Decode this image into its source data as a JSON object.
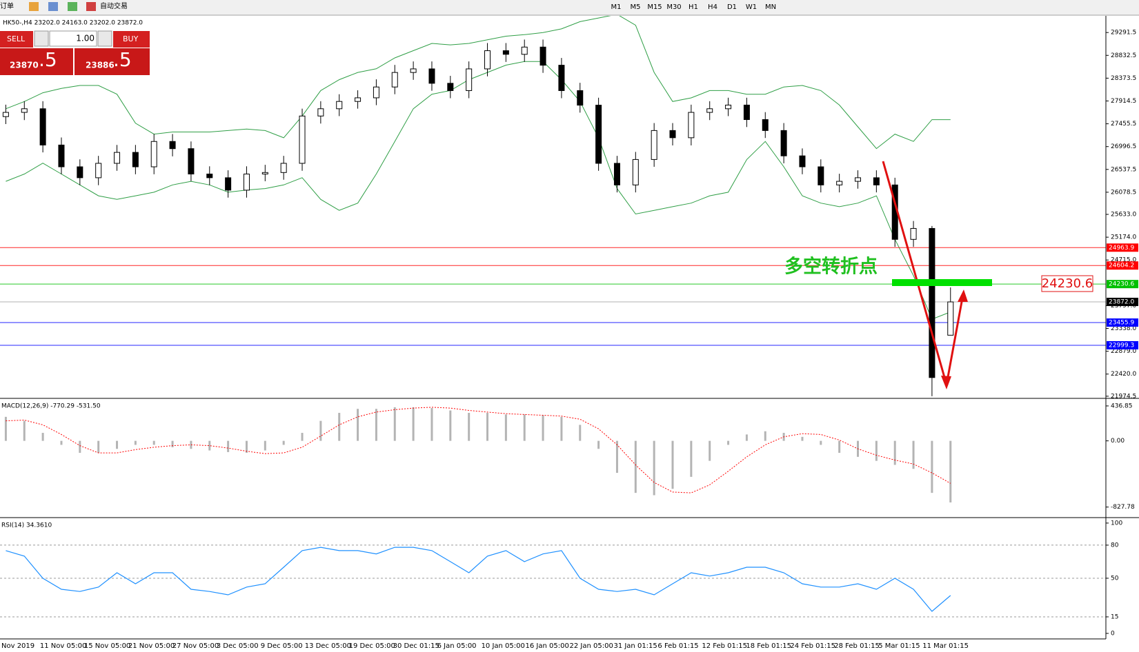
{
  "toolbar": {
    "new_order": "新订单",
    "auto_trading": "自动交易",
    "timeframes": [
      "M1",
      "M5",
      "M15",
      "M30",
      "H1",
      "H4",
      "D1",
      "W1",
      "MN"
    ]
  },
  "trade_panel": {
    "sell": "SELL",
    "lots": "1.00",
    "buy": "BUY",
    "bid": "23870",
    "bid_frac": ".5",
    "ask": "23886",
    "ask_frac": ".5"
  },
  "time_axis": [
    "Nov 2019",
    "11 Nov 05:00",
    "15 Nov 05:00",
    "21 Nov 05:00",
    "27 Nov 05:00",
    "3 Dec 05:00",
    "9 Dec 05:00",
    "13 Dec 05:00",
    "19 Dec 05:00",
    "30 Dec 01:15",
    "6 Jan 05:00",
    "10 Jan 05:00",
    "16 Jan 05:00",
    "22 Jan 05:00",
    "31 Jan 01:15",
    "6 Feb 01:15",
    "12 Feb 01:15",
    "18 Feb 01:15",
    "24 Feb 01:15",
    "28 Feb 01:15",
    "5 Mar 01:15",
    "11 Mar 01:15"
  ],
  "annotations": {
    "turning_point": "多空转折点",
    "price_box": "24230.6"
  },
  "chart_data": [
    {
      "type": "candlestick",
      "title": "HK50-,H4  23202.0 24163.0 23202.0 23872.0",
      "open": [
        27600,
        27685,
        27758,
        27028,
        26590,
        26370,
        26660,
        26880,
        26590,
        27100,
        26955,
        26445,
        26370,
        26120,
        26445,
        26475,
        26660,
        27612,
        27758,
        27905,
        27978,
        28196,
        28488,
        28560,
        28270,
        28123,
        28560,
        28926,
        28853,
        28999,
        28634,
        28123,
        27830,
        26660,
        26225,
        26737,
        27320,
        27175,
        27685,
        27758,
        27832,
        27540,
        27320,
        26810,
        26590,
        26225,
        26298,
        26370,
        26225,
        25130,
        25350,
        23202
      ],
      "high": [
        27840,
        27910,
        27910,
        27180,
        26740,
        26810,
        27030,
        27030,
        27250,
        27250,
        27100,
        26600,
        26520,
        26600,
        26630,
        26810,
        27760,
        27910,
        28050,
        28130,
        28350,
        28640,
        28710,
        28710,
        28420,
        28710,
        29080,
        29080,
        29150,
        29150,
        28780,
        28280,
        27980,
        26810,
        26890,
        27470,
        27470,
        27840,
        27910,
        27980,
        27980,
        27690,
        27470,
        26960,
        26740,
        26450,
        26520,
        26520,
        26370,
        25500,
        25400,
        24163
      ],
      "low": [
        27450,
        27530,
        26880,
        26440,
        26220,
        26220,
        26510,
        26440,
        26440,
        26800,
        26300,
        26220,
        25970,
        25970,
        26300,
        26330,
        26510,
        27460,
        27610,
        27760,
        27830,
        28050,
        28340,
        28120,
        27970,
        27970,
        28410,
        28700,
        28700,
        28480,
        27970,
        27680,
        26510,
        26075,
        26075,
        26590,
        27020,
        27020,
        27530,
        27610,
        27390,
        27170,
        26660,
        26440,
        26075,
        26075,
        26150,
        26075,
        24980,
        24980,
        21974.5,
        23202
      ],
      "close": [
        27685,
        27758,
        27028,
        26590,
        26370,
        26660,
        26880,
        26590,
        27100,
        26955,
        26445,
        26370,
        26120,
        26445,
        26475,
        26660,
        27612,
        27758,
        27905,
        27978,
        28196,
        28488,
        28560,
        28270,
        28123,
        28560,
        28926,
        28853,
        28999,
        28634,
        28123,
        27830,
        26660,
        26225,
        26737,
        27320,
        27175,
        27685,
        27758,
        27832,
        27540,
        27320,
        26810,
        26590,
        26225,
        26298,
        26370,
        26225,
        25130,
        25350,
        22350,
        23872
      ],
      "up_color": "#ffffff",
      "down_color": "#000000",
      "series": [
        {
          "color": "#2e9e45",
          "values": [
            27758,
            27904,
            28080,
            28167,
            28226,
            28226,
            28050,
            27466,
            27247,
            27291,
            27291,
            27291,
            27320,
            27350,
            27320,
            27174,
            27612,
            28124,
            28343,
            28489,
            28562,
            28781,
            28927,
            29072,
            29043,
            29072,
            29145,
            29218,
            29248,
            29292,
            29365,
            29510,
            29584,
            29657,
            29438,
            28489,
            27904,
            27977,
            28124,
            28124,
            28050,
            28050,
            28196,
            28226,
            28124,
            27832,
            27394,
            26956,
            27247,
            27101,
            27539,
            27539
          ]
        },
        {
          "color": "#2e9e45",
          "values": [
            26298,
            26445,
            26664,
            26445,
            26225,
            26007,
            25934,
            26007,
            26079,
            26225,
            26298,
            26225,
            26079,
            26123,
            26152,
            26225,
            26371,
            25934,
            25714,
            25860,
            26445,
            27101,
            27758,
            28050,
            28124,
            28343,
            28489,
            28635,
            28708,
            28708,
            28343,
            27904,
            27174,
            26152,
            25641,
            25714,
            25787,
            25860,
            26007,
            26079,
            26736,
            27101,
            26590,
            26007,
            25860,
            25787,
            25860,
            26007,
            25130,
            24400,
            23524,
            23670
          ]
        }
      ],
      "levels": [
        {
          "value": 24963.9,
          "color": "#ff0000"
        },
        {
          "value": 24604.2,
          "color": "#ff0000"
        },
        {
          "value": 24230.6,
          "color": "#00c000"
        },
        {
          "value": 23872,
          "label": "23872.0",
          "color": "#000000"
        },
        {
          "value": 23455.9,
          "color": "#0000ff"
        },
        {
          "value": 22999.3,
          "color": "#0000ff"
        }
      ],
      "ylim": [
        21945,
        29627
      ],
      "yticks": [
        29291.5,
        28832.5,
        28373.5,
        27914.5,
        27455.5,
        26996.5,
        26537.5,
        26078.5,
        {
          "value": 25633,
          "label": "25633.0"
        },
        {
          "value": 25174,
          "label": "25174.0"
        },
        {
          "value": 24715,
          "label": "24715.0"
        },
        {
          "value": 23797,
          "label": "23797.0"
        },
        {
          "value": 23338,
          "label": "23338.0"
        },
        {
          "value": 22879,
          "label": "22879.0"
        },
        {
          "value": 22420,
          "label": "22420.0"
        },
        21974.5
      ]
    },
    {
      "type": "macd",
      "title": "MACD(12,26,9) -770.29 -531.50",
      "histogram": {
        "color": "#b4b4b4",
        "values": [
          300,
          250,
          100,
          -50,
          -150,
          -150,
          -100,
          -50,
          -50,
          -80,
          -100,
          -120,
          -140,
          -150,
          -120,
          -50,
          100,
          250,
          350,
          400,
          400,
          420,
          420,
          410,
          380,
          350,
          350,
          330,
          330,
          320,
          300,
          200,
          -100,
          -400,
          -650,
          -680,
          -600,
          -450,
          -250,
          -50,
          80,
          120,
          100,
          50,
          -50,
          -150,
          -200,
          -250,
          -300,
          -350,
          -650,
          -770.29
        ]
      },
      "signal": {
        "color": "#ff0000",
        "values": [
          250,
          260,
          200,
          80,
          -60,
          -150,
          -150,
          -110,
          -80,
          -60,
          -50,
          -60,
          -90,
          -130,
          -160,
          -150,
          -80,
          60,
          200,
          300,
          360,
          390,
          410,
          420,
          410,
          380,
          360,
          340,
          330,
          320,
          310,
          270,
          150,
          -50,
          -300,
          -520,
          -640,
          -650,
          -550,
          -380,
          -200,
          -50,
          50,
          90,
          80,
          10,
          -100,
          -180,
          -240,
          -290,
          -400,
          -531.5
        ]
      },
      "ylim": [
        -951,
        514
      ],
      "yticks": [
        436.85,
        {
          "value": 0,
          "label": "0.00"
        },
        -827.78
      ]
    },
    {
      "type": "line",
      "title": "RSI(14) 34.3610",
      "color": "#1e90ff",
      "values": [
        75,
        70,
        50,
        40,
        38,
        42,
        55,
        45,
        55,
        55,
        40,
        38,
        35,
        42,
        45,
        60,
        75,
        78,
        75,
        75,
        72,
        78,
        78,
        75,
        65,
        55,
        70,
        75,
        65,
        72,
        75,
        50,
        40,
        38,
        40,
        35,
        45,
        55,
        52,
        55,
        60,
        60,
        55,
        45,
        42,
        42,
        45,
        40,
        50,
        40,
        20,
        34.361
      ],
      "ylim": [
        -5,
        103.7
      ],
      "yticks": [
        100,
        80,
        50,
        15,
        0
      ],
      "levels": [
        80,
        50,
        15
      ]
    }
  ]
}
